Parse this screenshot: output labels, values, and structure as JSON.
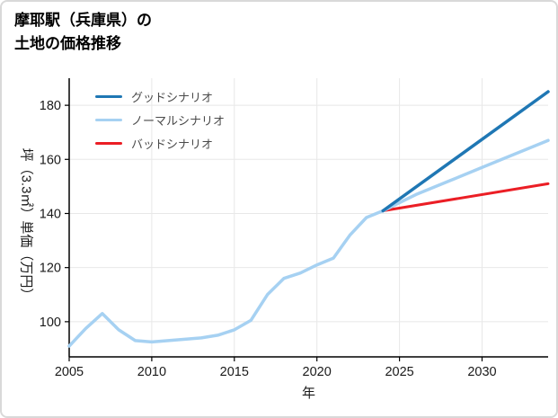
{
  "title": {
    "line1": "摩耶駅（兵庫県）の",
    "line2": "土地の価格推移"
  },
  "chart_data": {
    "type": "line",
    "title": "摩耶駅（兵庫県）の土地の価格推移",
    "xlabel": "年",
    "ylabel": "坪（3.3㎡）単価（万円）",
    "xlim": [
      2005,
      2034
    ],
    "ylim": [
      87,
      190
    ],
    "xticks": [
      2005,
      2010,
      2015,
      2020,
      2025,
      2030
    ],
    "yticks": [
      100,
      120,
      140,
      160,
      180
    ],
    "grid": true,
    "grid_color": "#e8e8e8",
    "axis_color": "#000000",
    "tick_color": "#1a1a1a",
    "legend_position": "top-left",
    "series": [
      {
        "id": "good",
        "name": "グッドシナリオ",
        "color": "#1f77b4",
        "width": 3.5,
        "in_legend": true,
        "x": [
          2024,
          2034
        ],
        "values": [
          141,
          185
        ]
      },
      {
        "id": "normal",
        "name": "ノーマルシナリオ",
        "color": "#a6d1f2",
        "width": 3.5,
        "in_legend": true,
        "x": [
          2024,
          2026,
          2028,
          2030,
          2032,
          2034
        ],
        "values": [
          141,
          147,
          152,
          157,
          162,
          167
        ]
      },
      {
        "id": "bad",
        "name": "バッドシナリオ",
        "color": "#eb1e25",
        "width": 3,
        "in_legend": true,
        "x": [
          2024,
          2034
        ],
        "values": [
          141,
          151
        ]
      },
      {
        "id": "history",
        "name": "history",
        "color": "#a6d1f2",
        "width": 3.5,
        "in_legend": false,
        "x": [
          2005,
          2006,
          2007,
          2008,
          2009,
          2010,
          2011,
          2012,
          2013,
          2014,
          2015,
          2016,
          2017,
          2018,
          2019,
          2020,
          2021,
          2022,
          2023,
          2024
        ],
        "values": [
          91,
          97.5,
          103,
          97,
          93,
          92.5,
          93,
          93.5,
          94,
          95,
          97,
          100.5,
          110,
          116,
          118,
          121,
          123.5,
          132,
          138.5,
          141
        ]
      }
    ]
  }
}
